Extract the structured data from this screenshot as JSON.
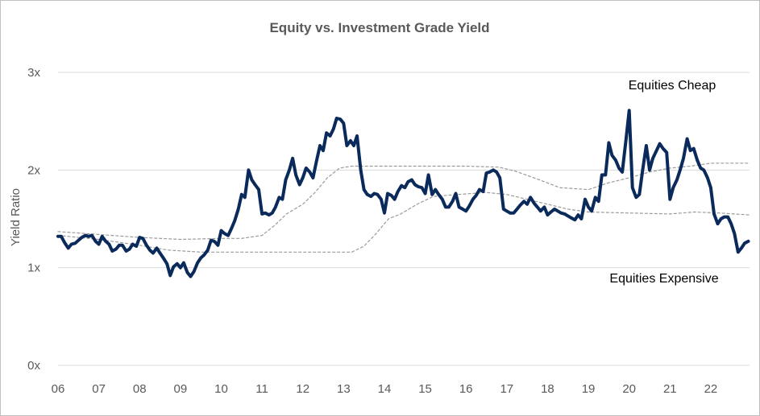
{
  "chart_data": {
    "type": "line",
    "title": "Equity vs.  Investment Grade Yield",
    "xlabel": "",
    "ylabel": "Yield Ratio",
    "xlim": [
      2006.0,
      2022.95
    ],
    "ylim": [
      0,
      3
    ],
    "yticks": [
      {
        "value": 0,
        "label": "0x"
      },
      {
        "value": 1,
        "label": "1x"
      },
      {
        "value": 2,
        "label": "2x"
      },
      {
        "value": 3,
        "label": "3x"
      }
    ],
    "xticks": [
      {
        "value": 2006,
        "label": "06"
      },
      {
        "value": 2007,
        "label": "07"
      },
      {
        "value": 2008,
        "label": "08"
      },
      {
        "value": 2009,
        "label": "09"
      },
      {
        "value": 2010,
        "label": "10"
      },
      {
        "value": 2011,
        "label": "11"
      },
      {
        "value": 2012,
        "label": "12"
      },
      {
        "value": 2013,
        "label": "13"
      },
      {
        "value": 2014,
        "label": "14"
      },
      {
        "value": 2015,
        "label": "15"
      },
      {
        "value": 2016,
        "label": "16"
      },
      {
        "value": 2017,
        "label": "17"
      },
      {
        "value": 2018,
        "label": "18"
      },
      {
        "value": 2019,
        "label": "19"
      },
      {
        "value": 2020,
        "label": "20"
      },
      {
        "value": 2021,
        "label": "21"
      },
      {
        "value": 2022,
        "label": "22"
      }
    ],
    "grid": true,
    "annotations": [
      {
        "text": "Equities Cheap",
        "x": 2021.8,
        "y": 2.7
      },
      {
        "text": "Equities Expensive",
        "x": 2021.4,
        "y": 0.9
      }
    ],
    "series": [
      {
        "name": "Yield Ratio",
        "color": "#0b2a5c",
        "style": "solid",
        "points": [
          [
            2006.0,
            1.32
          ],
          [
            2006.08,
            1.32
          ],
          [
            2006.17,
            1.25
          ],
          [
            2006.25,
            1.2
          ],
          [
            2006.33,
            1.24
          ],
          [
            2006.42,
            1.25
          ],
          [
            2006.5,
            1.28
          ],
          [
            2006.58,
            1.31
          ],
          [
            2006.67,
            1.33
          ],
          [
            2006.75,
            1.32
          ],
          [
            2006.83,
            1.33
          ],
          [
            2006.92,
            1.27
          ],
          [
            2007.0,
            1.24
          ],
          [
            2007.08,
            1.32
          ],
          [
            2007.17,
            1.27
          ],
          [
            2007.25,
            1.24
          ],
          [
            2007.33,
            1.17
          ],
          [
            2007.42,
            1.19
          ],
          [
            2007.5,
            1.23
          ],
          [
            2007.58,
            1.23
          ],
          [
            2007.67,
            1.17
          ],
          [
            2007.75,
            1.19
          ],
          [
            2007.83,
            1.24
          ],
          [
            2007.92,
            1.22
          ],
          [
            2008.0,
            1.31
          ],
          [
            2008.08,
            1.3
          ],
          [
            2008.17,
            1.23
          ],
          [
            2008.25,
            1.18
          ],
          [
            2008.33,
            1.15
          ],
          [
            2008.42,
            1.2
          ],
          [
            2008.5,
            1.15
          ],
          [
            2008.58,
            1.1
          ],
          [
            2008.67,
            1.04
          ],
          [
            2008.75,
            0.92
          ],
          [
            2008.83,
            1.01
          ],
          [
            2008.92,
            1.04
          ],
          [
            2009.0,
            1.0
          ],
          [
            2009.08,
            1.05
          ],
          [
            2009.17,
            0.95
          ],
          [
            2009.25,
            0.91
          ],
          [
            2009.33,
            0.96
          ],
          [
            2009.42,
            1.05
          ],
          [
            2009.5,
            1.1
          ],
          [
            2009.58,
            1.13
          ],
          [
            2009.67,
            1.18
          ],
          [
            2009.75,
            1.28
          ],
          [
            2009.83,
            1.27
          ],
          [
            2009.92,
            1.23
          ],
          [
            2010.0,
            1.38
          ],
          [
            2010.08,
            1.35
          ],
          [
            2010.17,
            1.33
          ],
          [
            2010.25,
            1.4
          ],
          [
            2010.33,
            1.48
          ],
          [
            2010.42,
            1.6
          ],
          [
            2010.5,
            1.75
          ],
          [
            2010.58,
            1.72
          ],
          [
            2010.67,
            2.0
          ],
          [
            2010.75,
            1.9
          ],
          [
            2010.83,
            1.85
          ],
          [
            2010.92,
            1.8
          ],
          [
            2011.0,
            1.55
          ],
          [
            2011.08,
            1.56
          ],
          [
            2011.17,
            1.54
          ],
          [
            2011.25,
            1.56
          ],
          [
            2011.33,
            1.62
          ],
          [
            2011.42,
            1.72
          ],
          [
            2011.5,
            1.7
          ],
          [
            2011.58,
            1.9
          ],
          [
            2011.67,
            2.0
          ],
          [
            2011.75,
            2.12
          ],
          [
            2011.83,
            1.95
          ],
          [
            2011.92,
            1.85
          ],
          [
            2012.0,
            1.92
          ],
          [
            2012.08,
            2.02
          ],
          [
            2012.17,
            1.98
          ],
          [
            2012.25,
            1.92
          ],
          [
            2012.33,
            2.08
          ],
          [
            2012.42,
            2.25
          ],
          [
            2012.5,
            2.2
          ],
          [
            2012.58,
            2.38
          ],
          [
            2012.67,
            2.35
          ],
          [
            2012.75,
            2.42
          ],
          [
            2012.83,
            2.53
          ],
          [
            2012.92,
            2.52
          ],
          [
            2013.0,
            2.48
          ],
          [
            2013.08,
            2.25
          ],
          [
            2013.17,
            2.3
          ],
          [
            2013.25,
            2.25
          ],
          [
            2013.33,
            2.35
          ],
          [
            2013.42,
            2.0
          ],
          [
            2013.5,
            1.8
          ],
          [
            2013.58,
            1.75
          ],
          [
            2013.67,
            1.73
          ],
          [
            2013.75,
            1.76
          ],
          [
            2013.83,
            1.75
          ],
          [
            2013.92,
            1.7
          ],
          [
            2014.0,
            1.56
          ],
          [
            2014.08,
            1.76
          ],
          [
            2014.17,
            1.74
          ],
          [
            2014.25,
            1.7
          ],
          [
            2014.33,
            1.78
          ],
          [
            2014.42,
            1.84
          ],
          [
            2014.5,
            1.82
          ],
          [
            2014.58,
            1.88
          ],
          [
            2014.67,
            1.9
          ],
          [
            2014.75,
            1.85
          ],
          [
            2014.83,
            1.83
          ],
          [
            2014.92,
            1.82
          ],
          [
            2015.0,
            1.76
          ],
          [
            2015.08,
            1.95
          ],
          [
            2015.17,
            1.75
          ],
          [
            2015.25,
            1.8
          ],
          [
            2015.33,
            1.75
          ],
          [
            2015.42,
            1.7
          ],
          [
            2015.5,
            1.62
          ],
          [
            2015.58,
            1.62
          ],
          [
            2015.67,
            1.68
          ],
          [
            2015.75,
            1.76
          ],
          [
            2015.83,
            1.62
          ],
          [
            2015.92,
            1.6
          ],
          [
            2016.0,
            1.58
          ],
          [
            2016.08,
            1.63
          ],
          [
            2016.17,
            1.7
          ],
          [
            2016.25,
            1.74
          ],
          [
            2016.33,
            1.8
          ],
          [
            2016.42,
            1.78
          ],
          [
            2016.5,
            1.97
          ],
          [
            2016.58,
            1.98
          ],
          [
            2016.67,
            2.0
          ],
          [
            2016.75,
            1.98
          ],
          [
            2016.83,
            1.92
          ],
          [
            2016.92,
            1.6
          ],
          [
            2017.0,
            1.58
          ],
          [
            2017.08,
            1.56
          ],
          [
            2017.17,
            1.56
          ],
          [
            2017.25,
            1.6
          ],
          [
            2017.33,
            1.64
          ],
          [
            2017.42,
            1.68
          ],
          [
            2017.5,
            1.65
          ],
          [
            2017.58,
            1.72
          ],
          [
            2017.67,
            1.66
          ],
          [
            2017.75,
            1.62
          ],
          [
            2017.83,
            1.58
          ],
          [
            2017.92,
            1.62
          ],
          [
            2018.0,
            1.54
          ],
          [
            2018.08,
            1.57
          ],
          [
            2018.17,
            1.6
          ],
          [
            2018.25,
            1.58
          ],
          [
            2018.33,
            1.56
          ],
          [
            2018.42,
            1.55
          ],
          [
            2018.5,
            1.53
          ],
          [
            2018.58,
            1.51
          ],
          [
            2018.67,
            1.49
          ],
          [
            2018.75,
            1.54
          ],
          [
            2018.83,
            1.5
          ],
          [
            2018.92,
            1.7
          ],
          [
            2019.0,
            1.62
          ],
          [
            2019.08,
            1.58
          ],
          [
            2019.17,
            1.72
          ],
          [
            2019.25,
            1.68
          ],
          [
            2019.33,
            1.95
          ],
          [
            2019.42,
            1.95
          ],
          [
            2019.5,
            2.28
          ],
          [
            2019.58,
            2.15
          ],
          [
            2019.67,
            2.1
          ],
          [
            2019.75,
            2.02
          ],
          [
            2019.83,
            1.98
          ],
          [
            2019.92,
            2.3
          ],
          [
            2020.0,
            2.61
          ],
          [
            2020.08,
            1.82
          ],
          [
            2020.17,
            1.72
          ],
          [
            2020.25,
            1.75
          ],
          [
            2020.33,
            2.0
          ],
          [
            2020.42,
            2.25
          ],
          [
            2020.5,
            2.0
          ],
          [
            2020.58,
            2.12
          ],
          [
            2020.67,
            2.2
          ],
          [
            2020.75,
            2.27
          ],
          [
            2020.83,
            2.22
          ],
          [
            2020.92,
            2.18
          ],
          [
            2021.0,
            1.7
          ],
          [
            2021.08,
            1.82
          ],
          [
            2021.17,
            1.9
          ],
          [
            2021.25,
            2.0
          ],
          [
            2021.33,
            2.12
          ],
          [
            2021.42,
            2.32
          ],
          [
            2021.5,
            2.2
          ],
          [
            2021.58,
            2.22
          ],
          [
            2021.67,
            2.1
          ],
          [
            2021.75,
            2.02
          ],
          [
            2021.83,
            2.0
          ],
          [
            2021.92,
            1.92
          ],
          [
            2022.0,
            1.82
          ],
          [
            2022.08,
            1.55
          ],
          [
            2022.17,
            1.45
          ],
          [
            2022.25,
            1.5
          ],
          [
            2022.33,
            1.52
          ],
          [
            2022.42,
            1.52
          ],
          [
            2022.5,
            1.45
          ],
          [
            2022.58,
            1.35
          ],
          [
            2022.67,
            1.16
          ],
          [
            2022.75,
            1.2
          ],
          [
            2022.83,
            1.25
          ],
          [
            2022.92,
            1.27
          ]
        ]
      },
      {
        "name": "Upper band",
        "color": "#9a9a9a",
        "style": "dashed",
        "points": [
          [
            2006.0,
            1.37
          ],
          [
            2007.0,
            1.34
          ],
          [
            2008.0,
            1.31
          ],
          [
            2009.0,
            1.29
          ],
          [
            2010.0,
            1.3
          ],
          [
            2010.5,
            1.3
          ],
          [
            2011.0,
            1.33
          ],
          [
            2011.3,
            1.43
          ],
          [
            2011.6,
            1.55
          ],
          [
            2012.0,
            1.65
          ],
          [
            2012.3,
            1.77
          ],
          [
            2012.6,
            1.92
          ],
          [
            2012.9,
            2.02
          ],
          [
            2013.2,
            2.04
          ],
          [
            2014.0,
            2.04
          ],
          [
            2015.0,
            2.04
          ],
          [
            2016.0,
            2.04
          ],
          [
            2016.8,
            2.03
          ],
          [
            2017.2,
            1.99
          ],
          [
            2017.8,
            1.9
          ],
          [
            2018.3,
            1.82
          ],
          [
            2019.0,
            1.8
          ],
          [
            2019.5,
            1.87
          ],
          [
            2020.0,
            1.92
          ],
          [
            2020.5,
            1.98
          ],
          [
            2021.0,
            2.02
          ],
          [
            2021.5,
            2.04
          ],
          [
            2022.0,
            2.07
          ],
          [
            2022.95,
            2.07
          ]
        ]
      },
      {
        "name": "Lower band",
        "color": "#9a9a9a",
        "style": "dashed",
        "points": [
          [
            2006.0,
            1.33
          ],
          [
            2007.0,
            1.29
          ],
          [
            2008.0,
            1.23
          ],
          [
            2008.7,
            1.18
          ],
          [
            2009.5,
            1.16
          ],
          [
            2010.5,
            1.16
          ],
          [
            2011.5,
            1.16
          ],
          [
            2012.5,
            1.16
          ],
          [
            2013.2,
            1.16
          ],
          [
            2013.5,
            1.22
          ],
          [
            2013.8,
            1.35
          ],
          [
            2014.1,
            1.5
          ],
          [
            2014.4,
            1.55
          ],
          [
            2014.8,
            1.65
          ],
          [
            2015.2,
            1.73
          ],
          [
            2015.8,
            1.75
          ],
          [
            2016.5,
            1.77
          ],
          [
            2017.0,
            1.75
          ],
          [
            2017.5,
            1.7
          ],
          [
            2018.0,
            1.65
          ],
          [
            2018.5,
            1.6
          ],
          [
            2019.0,
            1.57
          ],
          [
            2020.0,
            1.56
          ],
          [
            2021.0,
            1.55
          ],
          [
            2021.6,
            1.57
          ],
          [
            2022.2,
            1.56
          ],
          [
            2022.95,
            1.54
          ]
        ]
      }
    ]
  }
}
